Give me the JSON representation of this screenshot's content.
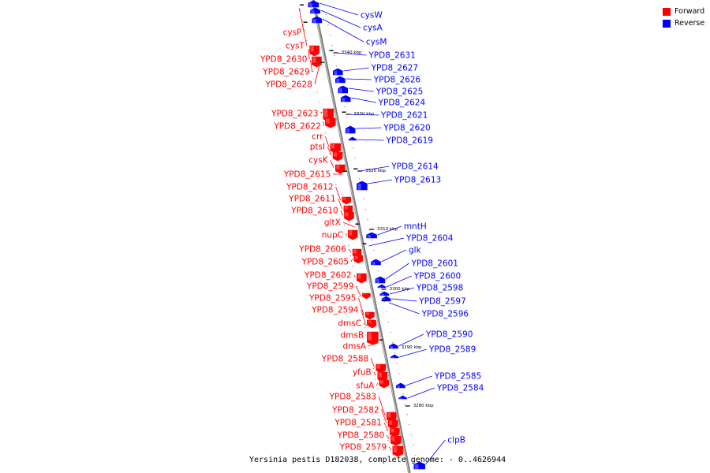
{
  "title": "Yersinia pestis D182038, complete genome: - 0..4626944",
  "legend": [
    {
      "label": "Forward",
      "color": "#ff0000"
    },
    {
      "label": "Reverse",
      "color": "#0000ff"
    }
  ],
  "colors": {
    "forward": "#ff0000",
    "reverse": "#0000ff",
    "backbone": "#888888"
  },
  "scale_ticks": [
    "3340 kbp",
    "3330 kbp",
    "3320 kbp",
    "3310 kbp",
    "3300 kbp",
    "3290 kbp",
    "3280 kbp"
  ],
  "forward_genes": [
    "cysP",
    "cysT",
    "YPD8_2630",
    "YPD8_2629",
    "YPD8_2628",
    "YPD8_2623",
    "YPD8_2622",
    "crr",
    "ptsI",
    "cysK",
    "YPD8_2615",
    "YPD8_2612",
    "YPD8_2611",
    "YPD8_2610",
    "gltX",
    "nupC",
    "YPD8_2606",
    "YPD8_2605",
    "YPD8_2602",
    "YPD8_2599",
    "YPD8_2595",
    "YPD8_2594",
    "dmsC",
    "dmsB",
    "dmsA",
    "YPD8_2588",
    "yfuB",
    "sfuA",
    "YPD8_2583",
    "YPD8_2582",
    "YPD8_2581",
    "YPD8_2580",
    "YPD8_2579"
  ],
  "reverse_genes": [
    "cysW",
    "cysA",
    "cysM",
    "YPD8_2631",
    "YPD8_2627",
    "YPD8_2626",
    "YPD8_2625",
    "YPD8_2624",
    "YPD8_2621",
    "YPD8_2620",
    "YPD8_2619",
    "YPD8_2614",
    "YPD8_2613",
    "mntH",
    "YPD8_2604",
    "glk",
    "YPD8_2601",
    "YPD8_2600",
    "YPD8_2598",
    "YPD8_2597",
    "YPD8_2596",
    "YPD8_2590",
    "YPD8_2589",
    "YPD8_2585",
    "YPD8_2584",
    "clpB"
  ]
}
